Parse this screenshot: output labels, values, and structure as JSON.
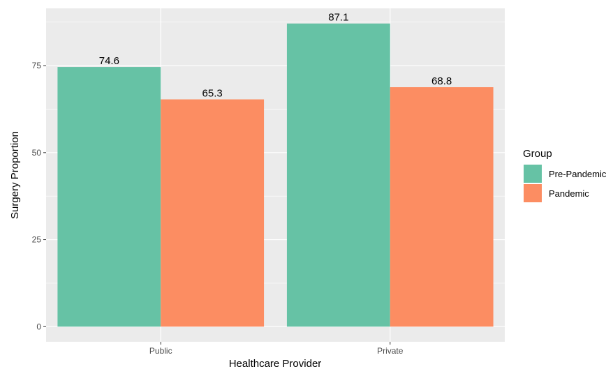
{
  "chart_data": {
    "type": "bar",
    "categories": [
      "Public",
      "Private"
    ],
    "series": [
      {
        "name": "Pre-Pandemic",
        "values": [
          74.6,
          87.1
        ],
        "color": "#66c2a5"
      },
      {
        "name": "Pandemic",
        "values": [
          65.3,
          68.8
        ],
        "color": "#fc8d62"
      }
    ],
    "data_labels": [
      [
        "74.6",
        "87.1"
      ],
      [
        "65.3",
        "68.8"
      ]
    ],
    "xlabel": "Healthcare Provider",
    "ylabel": "Surgery Proportion",
    "ylim": [
      -4.35,
      91.45
    ],
    "yticks": [
      0,
      25,
      50,
      75
    ],
    "ytick_labels": [
      "0",
      "25",
      "50",
      "75"
    ],
    "grid": true,
    "legend": {
      "title": "Group",
      "position": "right",
      "items": [
        "Pre-Pandemic",
        "Pandemic"
      ]
    },
    "panel_color": "#ebebeb",
    "grid_color": "#ffffff"
  }
}
